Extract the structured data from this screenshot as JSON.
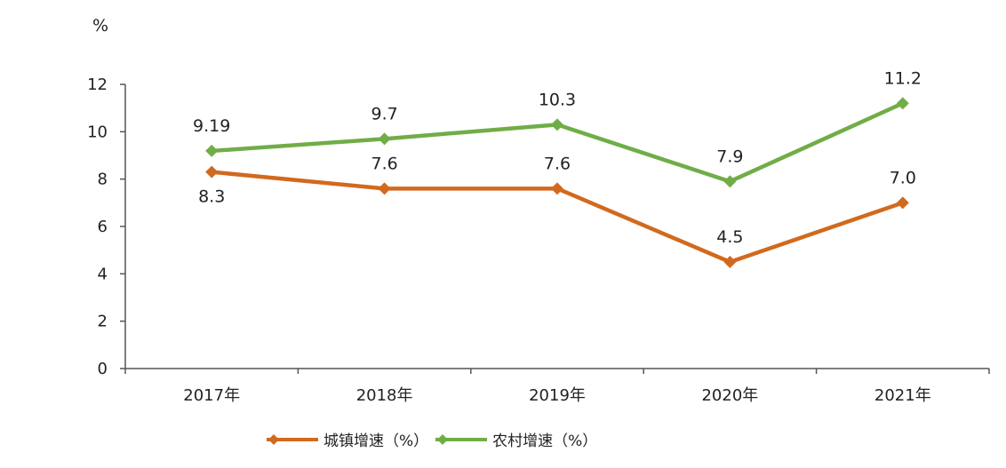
{
  "chart_data": {
    "type": "line",
    "y_unit": "%",
    "categories": [
      "2017年",
      "2018年",
      "2019年",
      "2020年",
      "2021年"
    ],
    "ylim": [
      0,
      12
    ],
    "yticks": [
      "0",
      "2",
      "4",
      "6",
      "8",
      "10",
      "12"
    ],
    "grid": false,
    "legend_position": "bottom",
    "series": [
      {
        "name": "城镇增速（%）",
        "color": "#D2691E",
        "marker": "diamond",
        "values": [
          8.3,
          7.6,
          7.6,
          4.5,
          7.0
        ],
        "labels": [
          "8.3",
          "7.6",
          "7.6",
          "4.5",
          "7.0"
        ],
        "label_side": [
          "below",
          "above",
          "above",
          "above",
          "above"
        ]
      },
      {
        "name": "农村增速（%）",
        "color": "#70AD47",
        "marker": "diamond",
        "values": [
          9.19,
          9.7,
          10.3,
          7.9,
          11.2
        ],
        "labels": [
          "9.19",
          "9.7",
          "10.3",
          "7.9",
          "11.2"
        ],
        "label_side": [
          "above",
          "above",
          "above",
          "above",
          "above"
        ]
      }
    ]
  }
}
